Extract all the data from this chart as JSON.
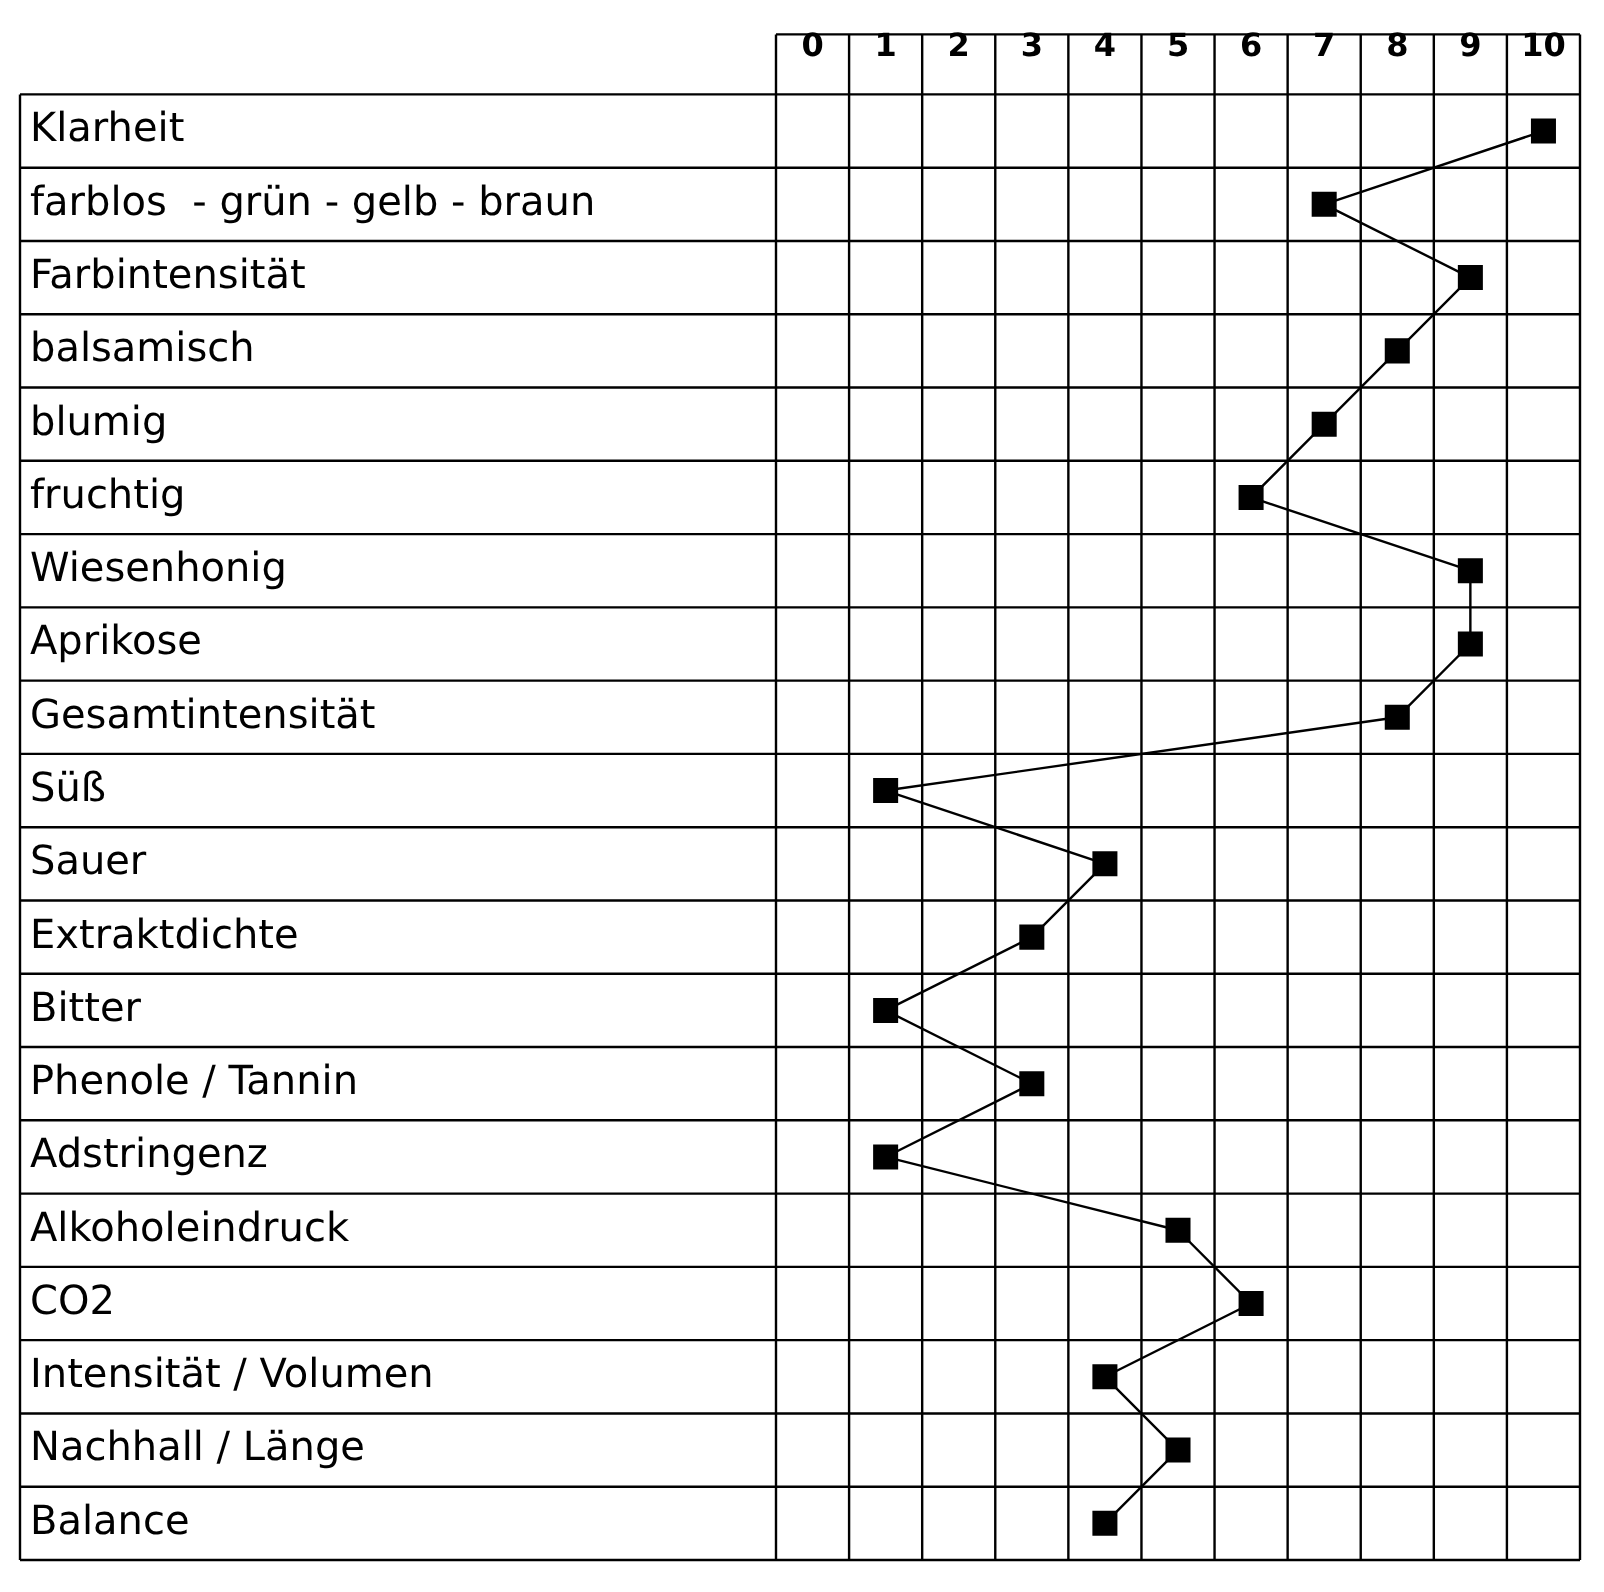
{
  "chart_data": {
    "type": "line",
    "orientation": "horizontal",
    "categories": [
      "Klarheit",
      "farblos  - grün - gelb - braun",
      "Farbintensität",
      "balsamisch",
      "blumig",
      "fruchtig",
      "Wiesenhonig",
      "Aprikose",
      "Gesamtintensität",
      "Süß",
      "Sauer",
      "Extraktdichte",
      "Bitter",
      "Phenole / Tannin",
      "Adstringenz",
      "Alkoholeindruck",
      "CO2",
      "Intensität / Volumen",
      "Nachhall / Länge",
      "Balance"
    ],
    "series": [
      {
        "color": "#000000",
        "values": [
          10,
          7,
          9,
          8,
          7,
          6,
          9,
          9,
          8,
          1,
          4,
          3,
          1,
          3,
          1,
          5,
          6,
          4,
          5,
          4
        ]
      }
    ],
    "xlim": [
      -0.5,
      10.5
    ],
    "xticks": [
      0,
      1,
      2,
      3,
      4,
      5,
      6,
      7,
      8,
      9,
      10
    ],
    "grid": true,
    "marker": "square",
    "line_style": "solid",
    "legend": false
  }
}
